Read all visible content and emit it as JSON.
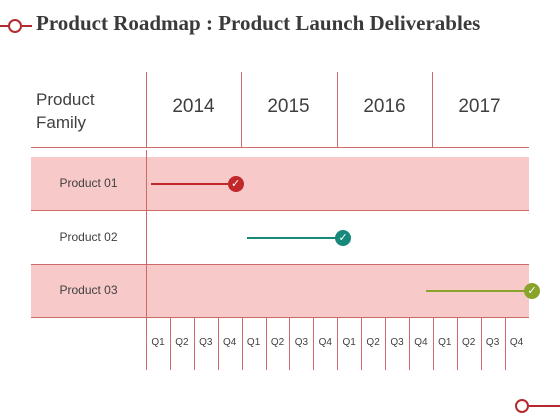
{
  "title": "Product Roadmap : Product Launch Deliverables",
  "header": {
    "family_label": "Product Family",
    "years": [
      "2014",
      "2015",
      "2016",
      "2017"
    ]
  },
  "quarters": [
    "Q1",
    "Q2",
    "Q3",
    "Q4",
    "Q1",
    "Q2",
    "Q3",
    "Q4",
    "Q1",
    "Q2",
    "Q3",
    "Q4",
    "Q1",
    "Q2",
    "Q3",
    "Q4"
  ],
  "rows": [
    {
      "label": "Product 01",
      "start_quarter": 0,
      "end_quarter": 3,
      "color": "#c0282b",
      "check_icon": "check-icon",
      "shaded": true
    },
    {
      "label": "Product 02",
      "start_quarter": 4,
      "end_quarter": 7.5,
      "color": "#17897a",
      "check_icon": "check-icon",
      "shaded": false
    },
    {
      "label": "Product 03",
      "start_quarter": 11.5,
      "end_quarter": 15.4,
      "color": "#8aa32b",
      "check_icon": "check-icon",
      "shaded": true
    }
  ],
  "colors": {
    "accent": "#b52a2e",
    "band": "#f7c9c8",
    "grid": "#cf6a6a"
  }
}
